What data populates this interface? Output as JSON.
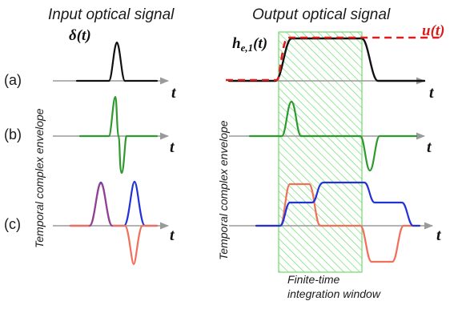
{
  "titles": {
    "input": "Input optical signal",
    "output": "Output optical signal"
  },
  "rows": {
    "a": "(a)",
    "b": "(b)",
    "c": "(c)"
  },
  "y_axis_label": "Temporal complex envelope",
  "t_label": "t",
  "math": {
    "delta_main": "δ",
    "delta_arg": "(t)",
    "h_main": "h",
    "h_sub": "e,1",
    "h_arg": "(t)",
    "u_label": "u(t)"
  },
  "window_caption": {
    "line1": "Finite-time",
    "line2": "integration window"
  },
  "colors": {
    "black": "#111111",
    "green": "#2e9a2e",
    "purple": "#8a3d9c",
    "blue": "#2233d6",
    "salmon": "#f0705a",
    "red_dashed": "#e01b1b",
    "window_green": "#3fcf3f"
  }
}
